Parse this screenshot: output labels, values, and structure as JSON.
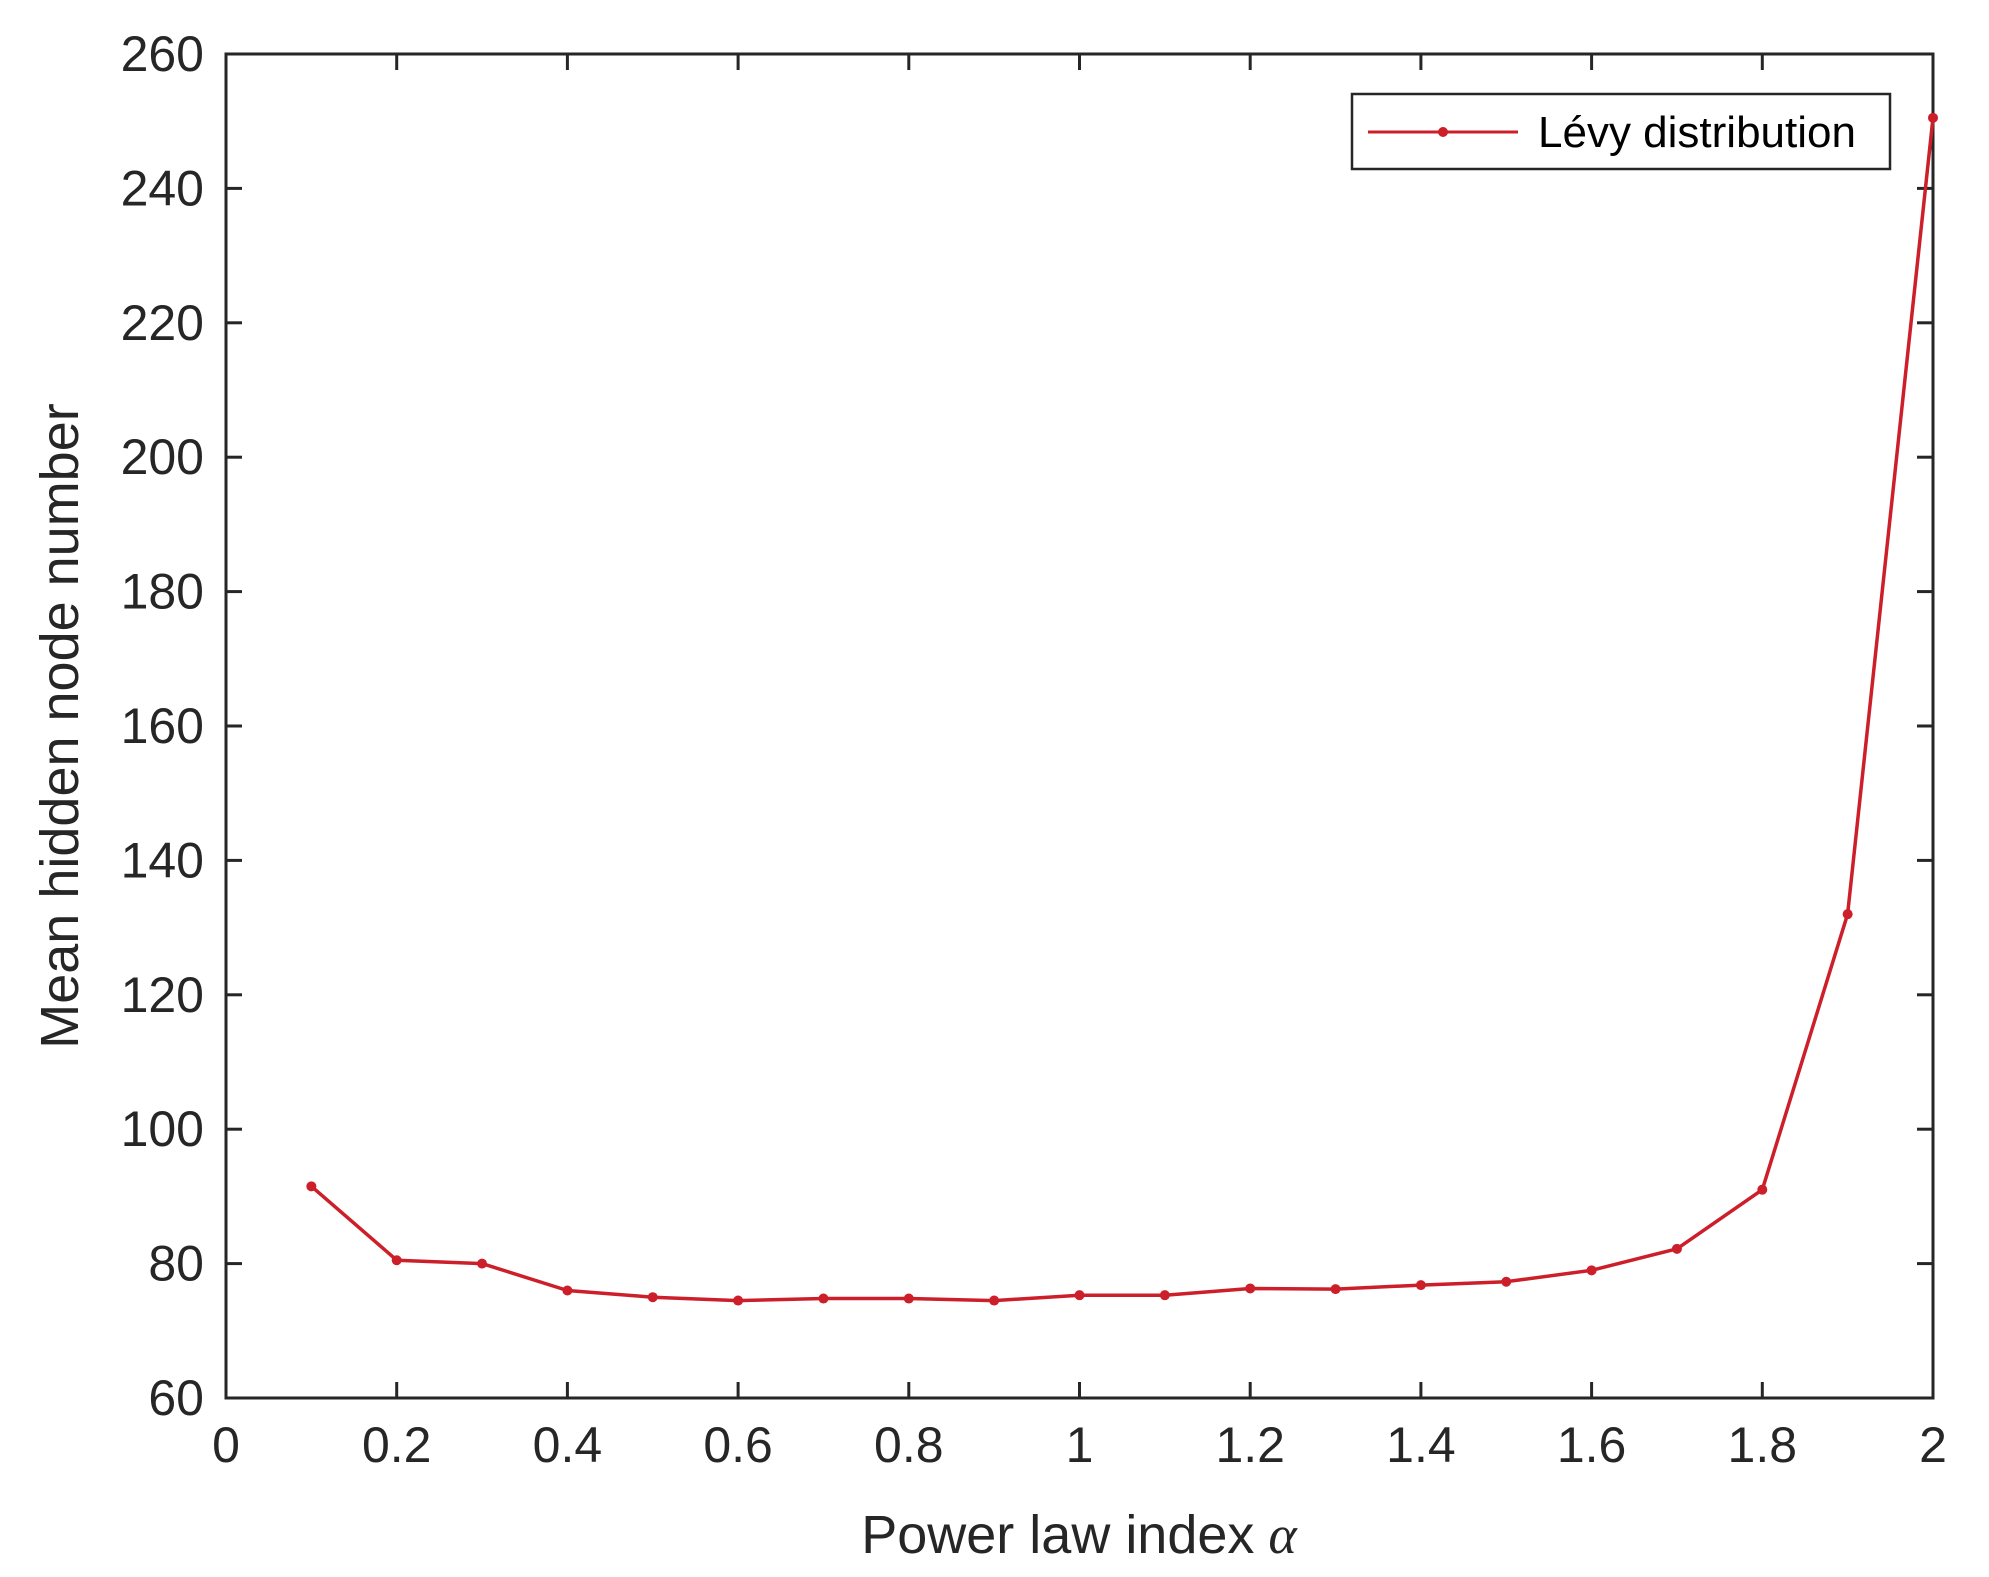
{
  "chart_data": {
    "type": "line",
    "title": "",
    "xlabel": "Power law index",
    "xlabel_symbol": "α",
    "ylabel": "Mean hidden node number",
    "xlim": [
      0,
      2
    ],
    "ylim": [
      60,
      260
    ],
    "x_ticks": [
      "0",
      "0.2",
      "0.4",
      "0.6",
      "0.8",
      "1",
      "1.2",
      "1.4",
      "1.6",
      "1.8",
      "2"
    ],
    "y_ticks": [
      "60",
      "80",
      "100",
      "120",
      "140",
      "160",
      "180",
      "200",
      "220",
      "240",
      "260"
    ],
    "grid": false,
    "legend_position": "top-right",
    "series": [
      {
        "name": "Lévy distribution",
        "color": "#cc1f2a",
        "marker": "dot",
        "x": [
          0.1,
          0.2,
          0.3,
          0.4,
          0.5,
          0.6,
          0.7,
          0.8,
          0.9,
          1.0,
          1.1,
          1.2,
          1.3,
          1.4,
          1.5,
          1.6,
          1.7,
          1.8,
          1.9,
          2.0
        ],
        "y": [
          91.5,
          80.5,
          80,
          76,
          75,
          74.5,
          74.8,
          74.8,
          74.5,
          75.3,
          75.3,
          76.3,
          76.2,
          76.8,
          77.3,
          79,
          82.2,
          91,
          132,
          250.5
        ]
      }
    ]
  }
}
